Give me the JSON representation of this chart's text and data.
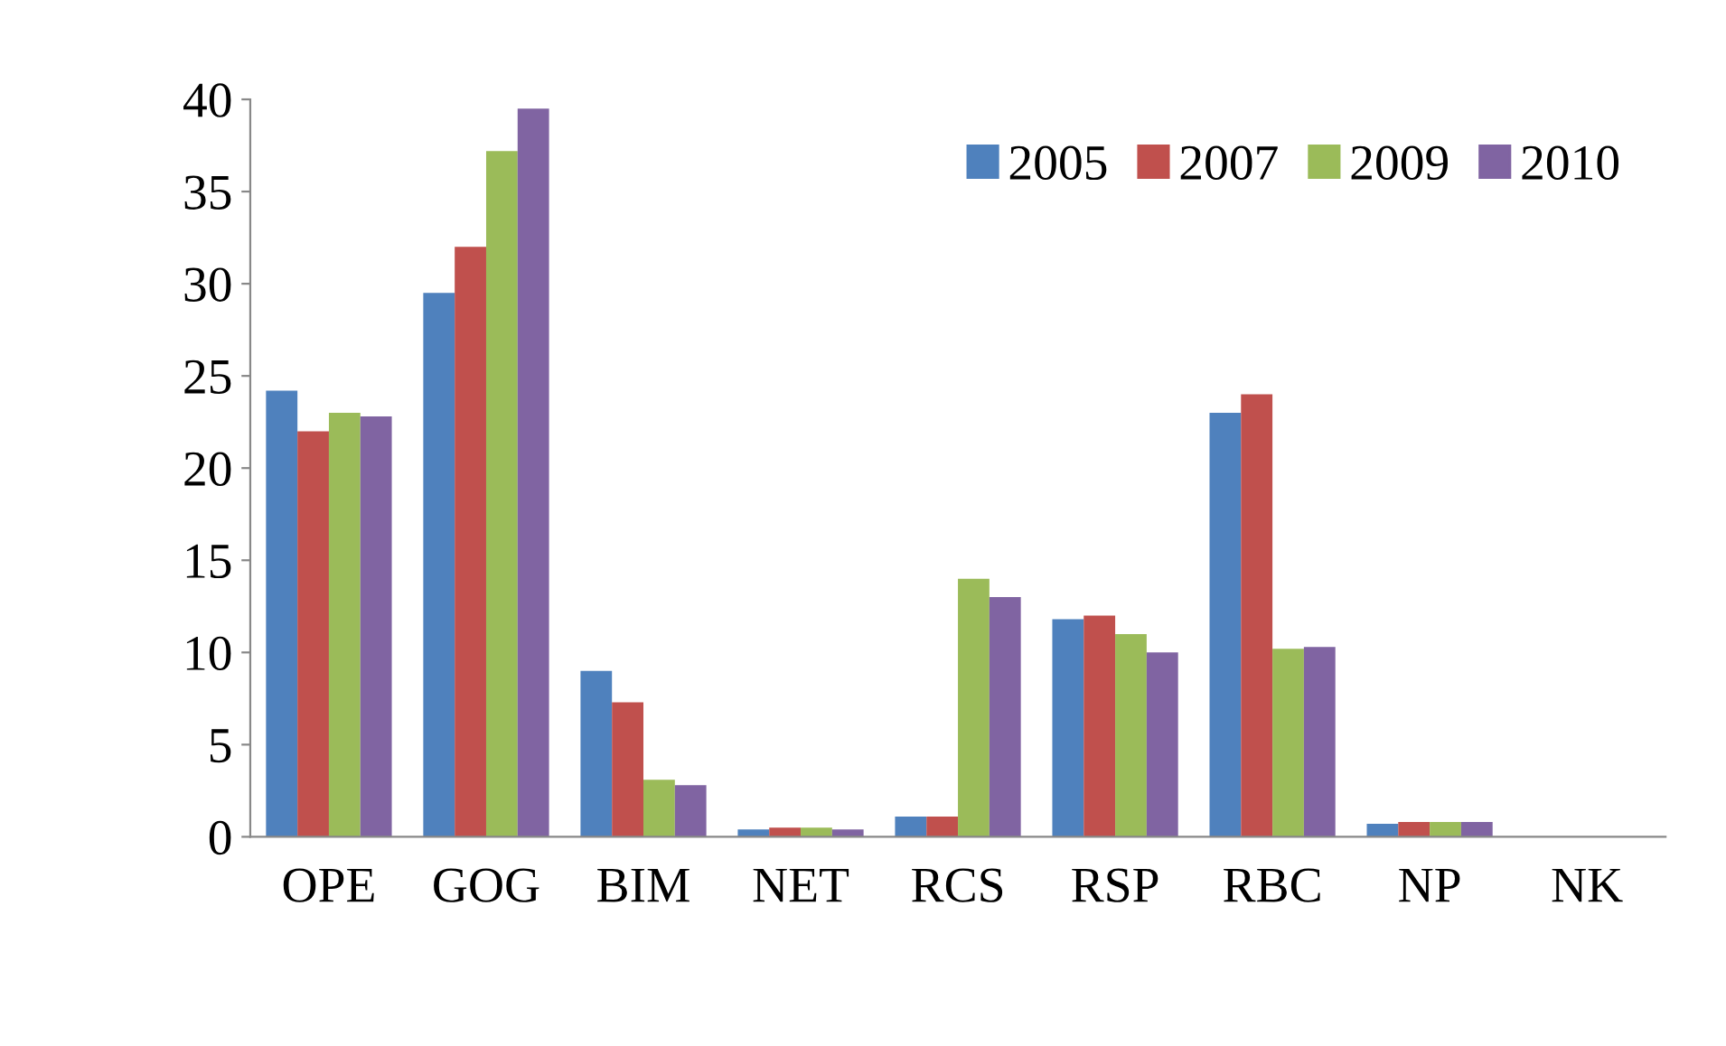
{
  "chart_data": {
    "type": "bar",
    "categories": [
      "OPE",
      "GOG",
      "BIM",
      "NET",
      "RCS",
      "RSP",
      "RBC",
      "NP",
      "NK"
    ],
    "series": [
      {
        "name": "2005",
        "color": "#4f81bd",
        "values": [
          24.2,
          29.5,
          9,
          0.4,
          1.1,
          11.8,
          23,
          0.7,
          0
        ]
      },
      {
        "name": "2007",
        "color": "#c0504d",
        "values": [
          22,
          32,
          7.3,
          0.5,
          1.1,
          12,
          24,
          0.8,
          0
        ]
      },
      {
        "name": "2009",
        "color": "#9bbb59",
        "values": [
          23,
          37.2,
          3.1,
          0.5,
          14,
          11,
          10.2,
          0.8,
          0
        ]
      },
      {
        "name": "2010",
        "color": "#8064a2",
        "values": [
          22.8,
          39.5,
          2.8,
          0.4,
          13,
          10,
          10.3,
          0.8,
          0
        ]
      }
    ],
    "ylim": [
      0,
      40
    ],
    "yticks": [
      0,
      5,
      10,
      15,
      20,
      25,
      30,
      35,
      40
    ],
    "grid": false,
    "legend": "top right"
  }
}
